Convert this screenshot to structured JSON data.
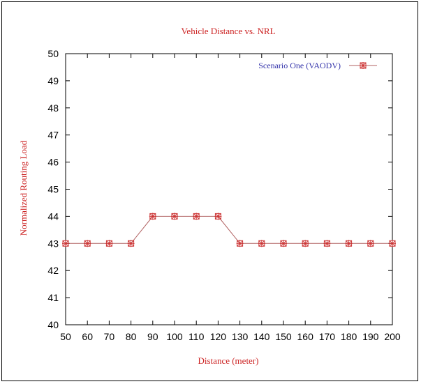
{
  "chart_data": {
    "type": "line",
    "title": "Vehicle Distance vs. NRL",
    "xlabel": "Distance (meter)",
    "ylabel": "Normalized Routing Load",
    "xlim": [
      50,
      200
    ],
    "ylim": [
      40,
      50
    ],
    "x_ticks": [
      50,
      60,
      70,
      80,
      90,
      100,
      110,
      120,
      130,
      140,
      150,
      160,
      170,
      180,
      190,
      200
    ],
    "y_ticks": [
      40,
      41,
      42,
      43,
      44,
      45,
      46,
      47,
      48,
      49,
      50
    ],
    "grid": false,
    "legend_position": "top-right",
    "series": [
      {
        "name": "Scenario One (VAODV)",
        "x": [
          50,
          60,
          70,
          80,
          90,
          100,
          110,
          120,
          130,
          140,
          150,
          160,
          170,
          180,
          190,
          200
        ],
        "y": [
          43,
          43,
          43,
          43,
          44,
          44,
          44,
          44,
          43,
          43,
          43,
          43,
          43,
          43,
          43,
          43
        ],
        "marker": "asterisk-box"
      }
    ],
    "colors": {
      "text": "#cc2222",
      "legend_text": "#3333aa",
      "line": "#b06060",
      "marker": "#cc3333",
      "axis": "#000000"
    }
  }
}
